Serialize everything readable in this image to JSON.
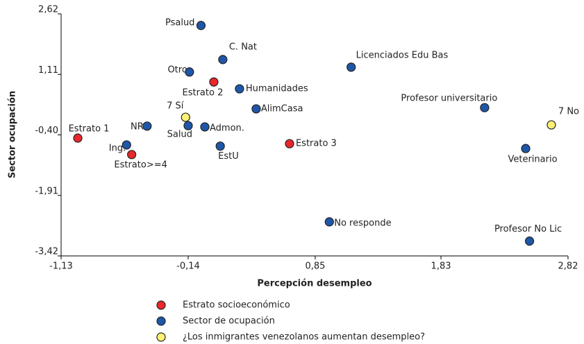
{
  "chart_data": {
    "type": "scatter",
    "x_label": "Percepción desempleo",
    "y_label": "Sector ocupación",
    "xlim": [
      -1.13,
      2.82
    ],
    "ylim": [
      -3.42,
      2.62
    ],
    "xticks": [
      {
        "value": -1.13,
        "label": "-1,13"
      },
      {
        "value": -0.14,
        "label": "-0,14"
      },
      {
        "value": 0.85,
        "label": "0,85"
      },
      {
        "value": 1.83,
        "label": "1,83"
      },
      {
        "value": 2.82,
        "label": "2,82"
      }
    ],
    "yticks": [
      {
        "value": -3.42,
        "label": "-3,42"
      },
      {
        "value": -1.91,
        "label": "-1,91"
      },
      {
        "value": -0.4,
        "label": "-0,40"
      },
      {
        "value": 1.11,
        "label": "1,11"
      },
      {
        "value": 2.62,
        "label": "2,62"
      }
    ],
    "series": [
      {
        "name": "Estrato socioeconómico",
        "color": "#e8282b",
        "labels": [
          "Estrato 1",
          "Estrato>=4",
          "Estrato 2",
          "Estrato 3"
        ],
        "x": [
          -1.0,
          -0.58,
          0.06,
          0.65
        ],
        "y": [
          -0.48,
          -0.89,
          0.92,
          -0.62
        ]
      },
      {
        "name": "Sector de ocupación",
        "color": "#1f57a8",
        "labels": [
          "Psalud",
          "C. Nat",
          "Otro",
          "Humanidades",
          "AlimCasa",
          "NR",
          "Salud",
          "Admon.",
          "Ing.",
          "EstU",
          "Licenciados Edu Bas",
          "No responde",
          "Profesor universitario",
          "Veterinario",
          "Profesor No Lic"
        ],
        "x": [
          -0.04,
          0.13,
          -0.13,
          0.26,
          0.39,
          -0.46,
          -0.14,
          -0.01,
          -0.62,
          0.11,
          1.13,
          0.96,
          2.17,
          2.49,
          2.52
        ],
        "y": [
          2.33,
          1.48,
          1.17,
          0.75,
          0.25,
          -0.18,
          -0.17,
          -0.2,
          -0.65,
          -0.68,
          1.29,
          -2.57,
          0.28,
          -0.74,
          -3.05
        ]
      },
      {
        "name": "¿Los inmigrantes venezolanos aumentan desempleo?",
        "color": "#fff176",
        "labels": [
          "7 Sí",
          "7 No"
        ],
        "x": [
          -0.16,
          2.69
        ],
        "y": [
          0.04,
          -0.15
        ]
      }
    ]
  }
}
